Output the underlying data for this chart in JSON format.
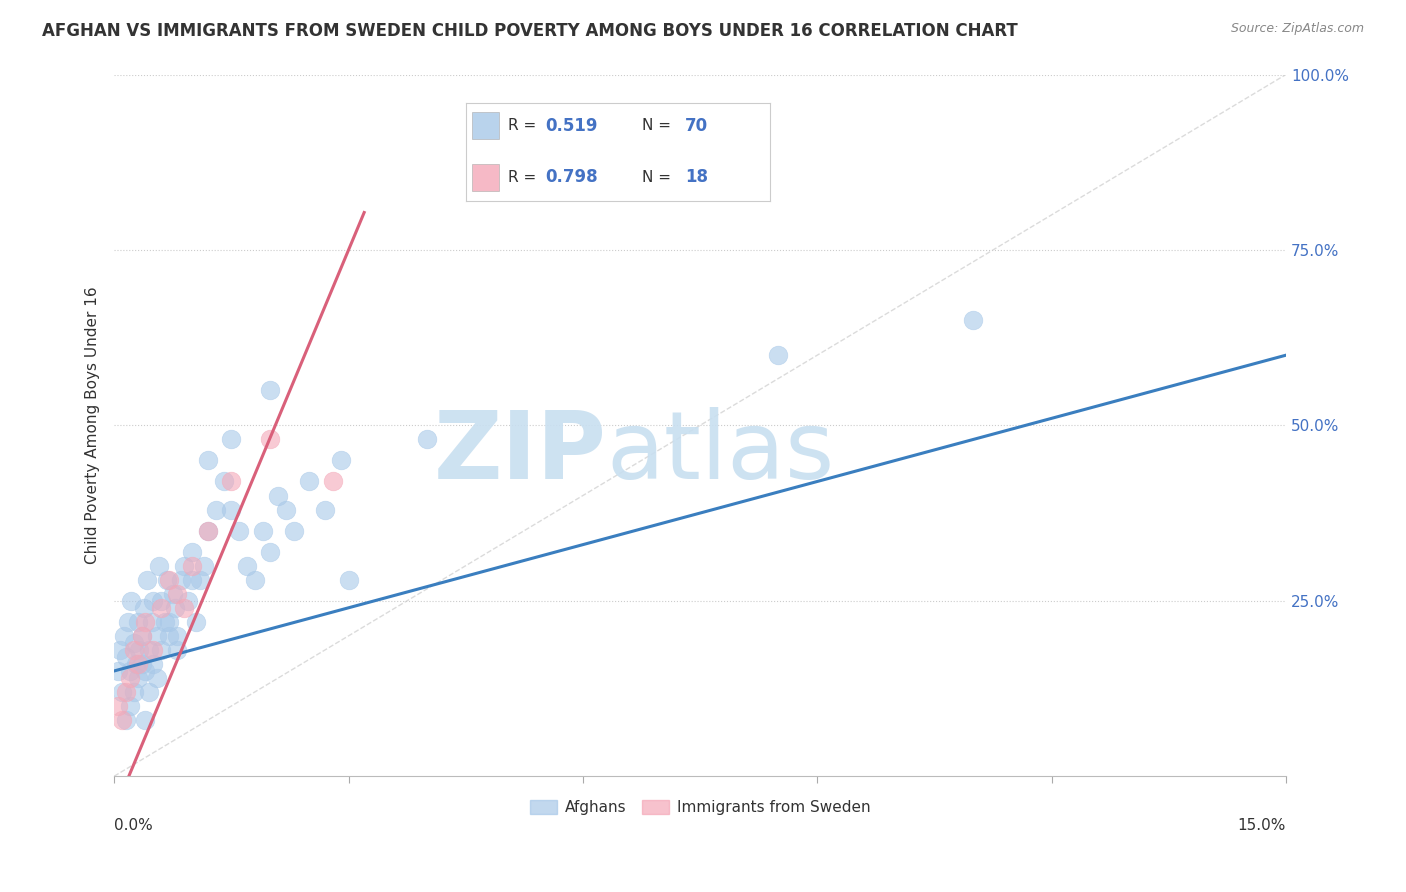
{
  "title": "AFGHAN VS IMMIGRANTS FROM SWEDEN CHILD POVERTY AMONG BOYS UNDER 16 CORRELATION CHART",
  "source": "Source: ZipAtlas.com",
  "ylabel": "Child Poverty Among Boys Under 16",
  "xlim": [
    0.0,
    15.0
  ],
  "ylim": [
    0.0,
    100.0
  ],
  "legend1_R": "0.519",
  "legend1_N": "70",
  "legend2_R": "0.798",
  "legend2_N": "18",
  "blue_scatter_color": "#a8c8e8",
  "pink_scatter_color": "#f4a8b8",
  "blue_line_color": "#3a7ebf",
  "pink_line_color": "#d9607a",
  "legend_text_color": "#4472c4",
  "watermark_color": "#c8dff0",
  "background_color": "#ffffff",
  "afghans_x": [
    0.05,
    0.08,
    0.1,
    0.12,
    0.15,
    0.18,
    0.2,
    0.22,
    0.25,
    0.28,
    0.3,
    0.32,
    0.35,
    0.38,
    0.4,
    0.42,
    0.45,
    0.48,
    0.5,
    0.55,
    0.58,
    0.6,
    0.65,
    0.68,
    0.7,
    0.75,
    0.78,
    0.8,
    0.85,
    0.9,
    0.95,
    1.0,
    1.05,
    1.1,
    1.15,
    1.2,
    1.3,
    1.4,
    1.5,
    1.6,
    1.7,
    1.8,
    1.9,
    2.0,
    2.1,
    2.2,
    2.3,
    2.5,
    2.7,
    2.9,
    0.15,
    0.2,
    0.25,
    0.3,
    0.35,
    0.4,
    0.45,
    0.5,
    0.55,
    0.6,
    0.7,
    0.8,
    1.0,
    1.2,
    1.5,
    2.0,
    3.0,
    4.0,
    8.5,
    11.0
  ],
  "afghans_y": [
    15,
    18,
    12,
    20,
    17,
    22,
    15,
    25,
    19,
    16,
    22,
    18,
    20,
    24,
    15,
    28,
    18,
    22,
    25,
    20,
    30,
    25,
    22,
    28,
    20,
    26,
    24,
    18,
    28,
    30,
    25,
    32,
    22,
    28,
    30,
    35,
    38,
    42,
    38,
    35,
    30,
    28,
    35,
    32,
    40,
    38,
    35,
    42,
    38,
    45,
    8,
    10,
    12,
    14,
    16,
    8,
    12,
    16,
    14,
    18,
    22,
    20,
    28,
    45,
    48,
    55,
    28,
    48,
    60,
    65
  ],
  "sweden_x": [
    0.05,
    0.1,
    0.15,
    0.2,
    0.25,
    0.3,
    0.35,
    0.4,
    0.5,
    0.6,
    0.7,
    0.8,
    0.9,
    1.0,
    1.2,
    1.5,
    2.0,
    2.8
  ],
  "sweden_y": [
    10,
    8,
    12,
    14,
    18,
    16,
    20,
    22,
    18,
    24,
    28,
    26,
    24,
    30,
    35,
    42,
    48,
    42
  ]
}
